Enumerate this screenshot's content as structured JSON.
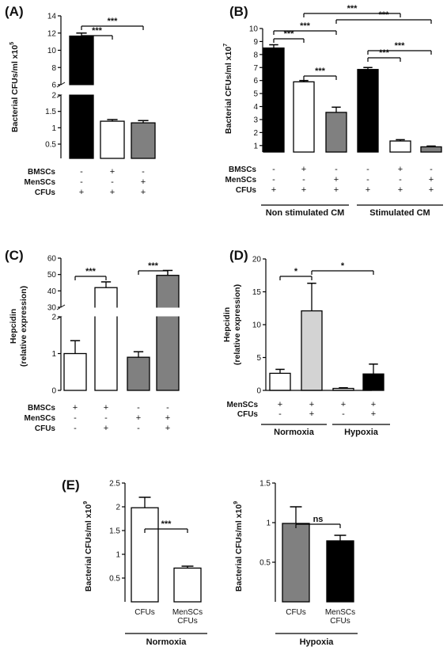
{
  "chart_data": [
    {
      "panel": "(A)",
      "type": "bar",
      "ylabel": "Bacterial CFUs/ml x10",
      "ylabel_exp": "5",
      "axis_break": {
        "lower": [
          0.5,
          2
        ],
        "upper": [
          6,
          14
        ]
      },
      "yticks_lower": [
        "0.5",
        "1",
        "1.5",
        "2"
      ],
      "yticks_upper": [
        "6",
        "8",
        "10",
        "12",
        "14"
      ],
      "colors": [
        "#000000",
        "#ffffff",
        "#808080"
      ],
      "values": [
        11.65,
        1.2,
        1.15
      ],
      "errors": [
        0.35,
        0.05,
        0.07
      ],
      "factors": [
        {
          "label": "BMSCs",
          "marks": [
            "-",
            "+",
            "-"
          ]
        },
        {
          "label": "MenSCs",
          "marks": [
            "-",
            "-",
            "+"
          ]
        },
        {
          "label": "CFUs",
          "marks": [
            "+",
            "+",
            "+"
          ]
        }
      ],
      "significance": [
        {
          "from": 0,
          "to": 1,
          "label": "***"
        },
        {
          "from": 0,
          "to": 2,
          "label": "***"
        }
      ]
    },
    {
      "panel": "(B)",
      "type": "bar",
      "ylabel": "Bacterial CFUs/ml x10",
      "ylabel_exp": "7",
      "ylim": [
        0.5,
        10
      ],
      "yticks": [
        "1",
        "2",
        "3",
        "4",
        "5",
        "6",
        "7",
        "8",
        "9",
        "10"
      ],
      "colors": [
        "#000000",
        "#ffffff",
        "#808080",
        "#000000",
        "#ffffff",
        "#808080"
      ],
      "values": [
        8.5,
        5.9,
        3.55,
        6.85,
        1.35,
        0.9
      ],
      "errors": [
        0.25,
        0.1,
        0.4,
        0.15,
        0.1,
        0.06
      ],
      "factors": [
        {
          "label": "BMSCs",
          "marks": [
            "-",
            "+",
            "-",
            "-",
            "+",
            "-"
          ]
        },
        {
          "label": "MenSCs",
          "marks": [
            "-",
            "-",
            "+",
            "-",
            "-",
            "+"
          ]
        },
        {
          "label": "CFUs",
          "marks": [
            "+",
            "+",
            "+",
            "+",
            "+",
            "+"
          ]
        }
      ],
      "groups": [
        "Non stimulated CM",
        "Stimulated CM"
      ],
      "significance": [
        {
          "from": 0,
          "to": 1,
          "label": "***"
        },
        {
          "from": 0,
          "to": 2,
          "label": "***"
        },
        {
          "from": 1,
          "to": 2,
          "label": "***"
        },
        {
          "from": 1,
          "to": 4,
          "label": "***"
        },
        {
          "from": 2,
          "to": 5,
          "label": "***"
        },
        {
          "from": 3,
          "to": 4,
          "label": "***"
        },
        {
          "from": 3,
          "to": 5,
          "label": "***"
        }
      ]
    },
    {
      "panel": "(C)",
      "type": "bar",
      "ylabel": "Hepcidin",
      "ylabel2": "(relative expression)",
      "axis_break": {
        "lower": [
          0,
          2
        ],
        "upper": [
          30,
          60
        ]
      },
      "yticks_lower": [
        "0",
        "1",
        "2"
      ],
      "yticks_upper": [
        "30",
        "40",
        "50",
        "60"
      ],
      "colors": [
        "#ffffff",
        "#ffffff",
        "#808080",
        "#808080"
      ],
      "values": [
        1.0,
        42.0,
        0.9,
        49.5
      ],
      "errors": [
        0.35,
        3.5,
        0.15,
        3.0
      ],
      "factors": [
        {
          "label": "BMSCs",
          "marks": [
            "+",
            "+",
            "-",
            "-"
          ]
        },
        {
          "label": "MenSCs",
          "marks": [
            "-",
            "-",
            "+",
            "+"
          ]
        },
        {
          "label": "CFUs",
          "marks": [
            "-",
            "+",
            "-",
            "+"
          ]
        }
      ],
      "significance": [
        {
          "from": 0,
          "to": 1,
          "label": "***"
        },
        {
          "from": 2,
          "to": 3,
          "label": "***"
        }
      ]
    },
    {
      "panel": "(D)",
      "type": "bar",
      "ylabel": "Hepcidin",
      "ylabel2": "(relative expression)",
      "ylim": [
        0,
        20
      ],
      "yticks": [
        "0",
        "5",
        "10",
        "15",
        "20"
      ],
      "colors": [
        "#ffffff",
        "#d3d3d3",
        "#ffffff",
        "#000000"
      ],
      "values": [
        2.6,
        12.1,
        0.3,
        2.5
      ],
      "errors": [
        0.6,
        4.2,
        0.1,
        1.5
      ],
      "factors": [
        {
          "label": "MenSCs",
          "marks": [
            "+",
            "+",
            "+",
            "+"
          ]
        },
        {
          "label": "CFUs",
          "marks": [
            "-",
            "+",
            "-",
            "+"
          ]
        }
      ],
      "groups": [
        "Normoxia",
        "Hypoxia"
      ],
      "significance": [
        {
          "from": 0,
          "to": 1,
          "label": "*"
        },
        {
          "from": 1,
          "to": 3,
          "label": "*"
        }
      ]
    },
    {
      "panel": "(E)",
      "type": "bar",
      "ylabel": "Bacterial CFUs/ml x10",
      "ylabel_exp": "9",
      "ylim": [
        0,
        2.5
      ],
      "yticks": [
        "0.5",
        "1",
        "1.5",
        "2",
        "2.5"
      ],
      "colors": [
        "#ffffff",
        "#ffffff"
      ],
      "categories": [
        "CFUs",
        "MenSCs|CFUs"
      ],
      "values": [
        1.98,
        0.71
      ],
      "errors": [
        0.22,
        0.04
      ],
      "group": "Normoxia",
      "significance": [
        {
          "from": 0,
          "to": 1,
          "label": "***"
        }
      ]
    },
    {
      "panel": "",
      "type": "bar",
      "ylabel": "Bacterial CFUs/ml x10",
      "ylabel_exp": "9",
      "ylim": [
        0,
        1.5
      ],
      "yticks": [
        "0.5",
        "1",
        "1.5"
      ],
      "colors": [
        "#808080",
        "#000000"
      ],
      "categories": [
        "CFUs",
        "MenSCs|CFUs"
      ],
      "values": [
        0.99,
        0.77
      ],
      "errors": [
        0.21,
        0.07
      ],
      "group": "Hypoxia",
      "significance": [
        {
          "from": 0,
          "to": 1,
          "label": "ns"
        }
      ]
    }
  ]
}
